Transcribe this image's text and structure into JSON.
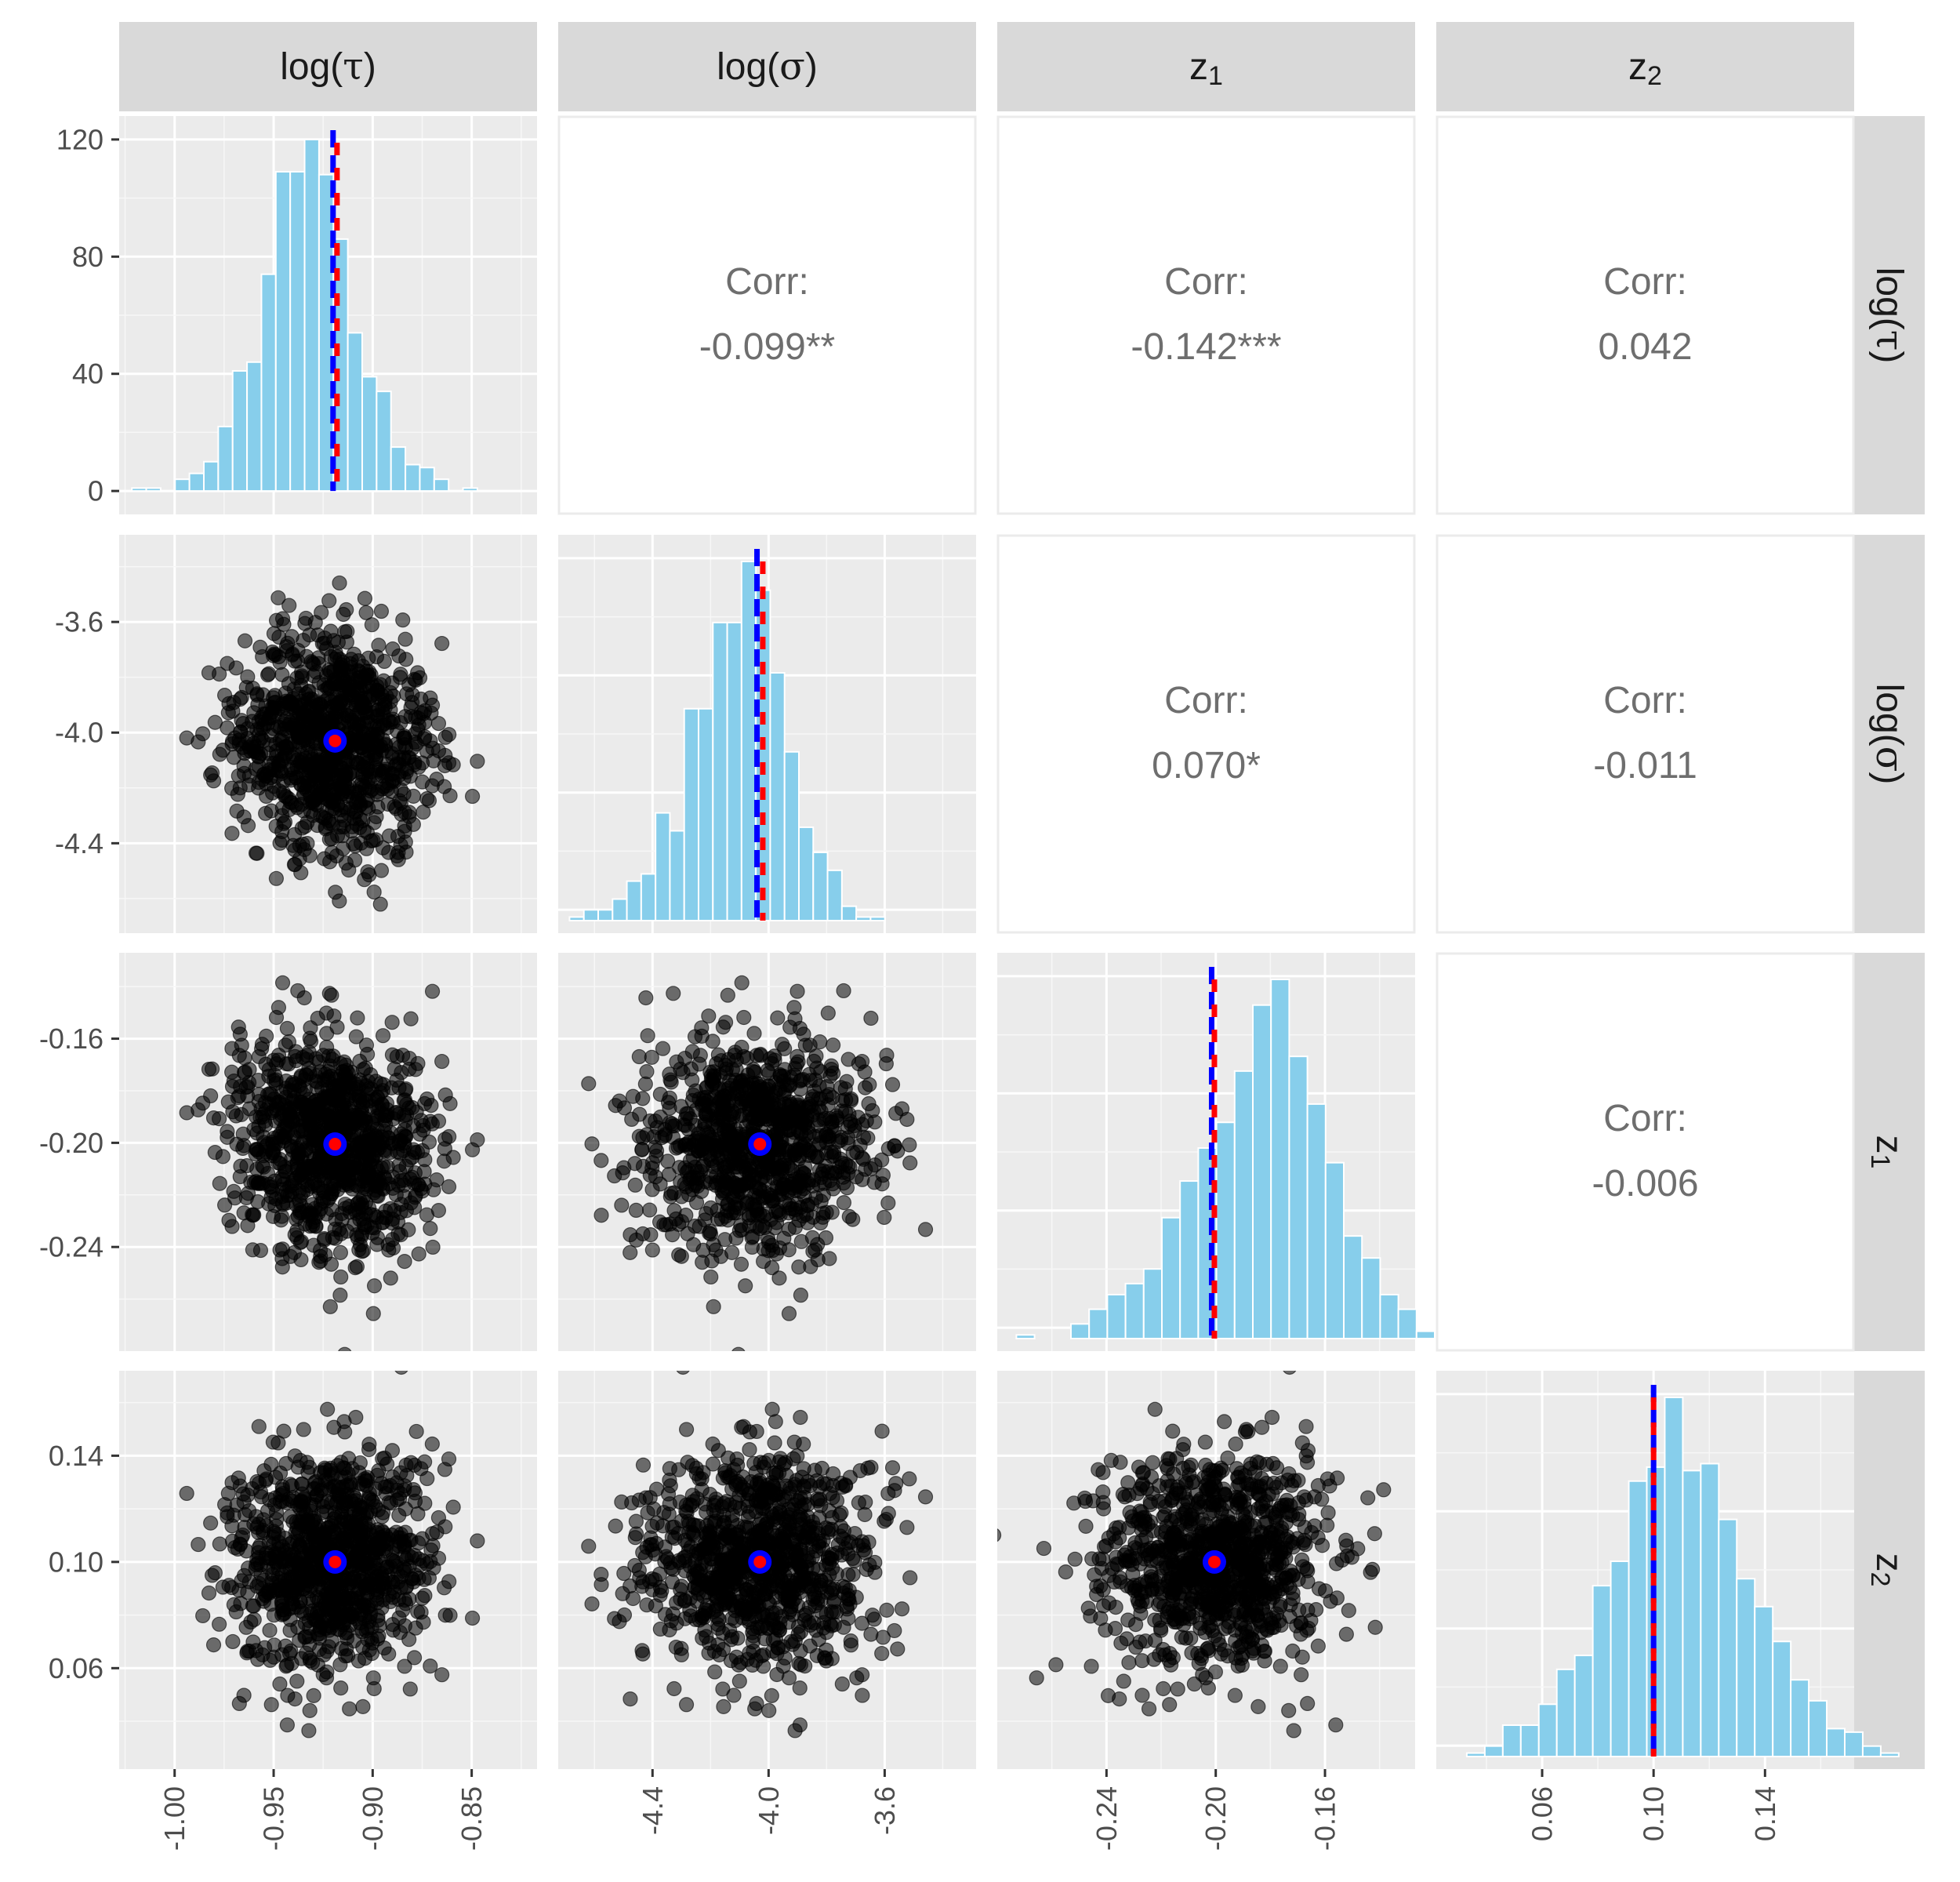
{
  "variables": [
    {
      "key": "logtau",
      "label_main": "log(",
      "label_sym": "τ",
      "label_end": ")",
      "label_sub": ""
    },
    {
      "key": "logsigma",
      "label_main": "log(",
      "label_sym": "σ",
      "label_end": ")",
      "label_sub": ""
    },
    {
      "key": "z1",
      "label_main": "z",
      "label_sym": "",
      "label_end": "",
      "label_sub": "1"
    },
    {
      "key": "z2",
      "label_main": "z",
      "label_sym": "",
      "label_end": "",
      "label_sub": "2"
    }
  ],
  "colors": {
    "panel_bg": "#ebebeb",
    "strip_bg": "#d9d9d9",
    "hist_fill": "#87ceeb",
    "point": "#000000",
    "mean_line": "#ff0000",
    "true_line": "#0000ff"
  },
  "chart_data": {
    "type": "pairs",
    "corr_label": "Corr:",
    "correlations": [
      {
        "row": 0,
        "col": 1,
        "value": "-0.099**"
      },
      {
        "row": 0,
        "col": 2,
        "value": "-0.142***"
      },
      {
        "row": 0,
        "col": 3,
        "value": "0.042"
      },
      {
        "row": 1,
        "col": 2,
        "value": "0.070*"
      },
      {
        "row": 1,
        "col": 3,
        "value": "-0.011"
      },
      {
        "row": 2,
        "col": 3,
        "value": "-0.006"
      }
    ],
    "axes": {
      "logtau": {
        "range": [
          -1.028,
          -0.817
        ],
        "ticks": [
          -1.0,
          -0.95,
          -0.9,
          -0.85
        ],
        "tick_labels": [
          "-1.00",
          "-0.95",
          "-0.90",
          "-0.85"
        ]
      },
      "logsigma": {
        "range": [
          -4.725,
          -3.285
        ],
        "ticks": [
          -4.4,
          -4.0,
          -3.6
        ],
        "tick_labels": [
          "-4.4",
          "-4.0",
          "-3.6"
        ]
      },
      "z1": {
        "range": [
          -0.28,
          -0.127
        ],
        "ticks": [
          -0.24,
          -0.2,
          -0.16
        ],
        "tick_labels": [
          "-0.24",
          "-0.20",
          "-0.16"
        ]
      },
      "z2": {
        "range": [
          0.022,
          0.172
        ],
        "ticks": [
          0.06,
          0.1,
          0.14
        ],
        "tick_labels": [
          "0.06",
          "0.10",
          "0.14"
        ]
      }
    },
    "y_axis_hist_top_left": {
      "range": [
        -8,
        128
      ],
      "ticks": [
        0,
        40,
        80,
        120
      ],
      "tick_labels": [
        "0",
        "40",
        "80",
        "120"
      ]
    },
    "histograms": {
      "logtau": {
        "start": -1.0216,
        "binwidth": 0.00727,
        "counts": [
          1,
          1,
          0,
          4,
          6,
          10,
          22,
          41,
          44,
          74,
          109,
          109,
          120,
          108,
          86,
          54,
          39,
          34,
          15,
          9,
          8,
          4,
          0,
          1
        ],
        "mean": -0.918,
        "true": -0.92
      },
      "logsigma": {
        "start": -4.686,
        "binwidth": 0.0494,
        "counts": [
          1,
          3,
          3,
          6,
          11,
          13,
          30,
          25,
          59,
          59,
          83,
          83,
          100,
          92,
          69,
          47,
          26,
          19,
          14,
          4,
          1,
          1
        ],
        "mean": -4.02,
        "true": -4.04
      },
      "z1": {
        "start": -0.273,
        "binwidth": 0.00666,
        "counts": [
          1,
          0,
          0,
          4,
          8,
          12,
          15,
          19,
          33,
          43,
          52,
          59,
          73,
          91,
          98,
          77,
          64,
          48,
          28,
          22,
          12,
          8,
          2,
          0,
          0,
          1
        ],
        "mean": -0.2005,
        "true": -0.2015
      },
      "z2": {
        "start": 0.0265,
        "binwidth": 0.00646,
        "counts": [
          0,
          1,
          3,
          9,
          9,
          15,
          25,
          29,
          49,
          56,
          79,
          83,
          103,
          82,
          84,
          68,
          51,
          43,
          33,
          22,
          16,
          8,
          7,
          3,
          1
        ],
        "mean": 0.1,
        "true": 0.1
      }
    },
    "scatter": {
      "n_points": 1000,
      "means": {
        "logtau": -0.919,
        "logsigma": -4.03,
        "z1": -0.2005,
        "z2": 0.1
      },
      "sds": {
        "logtau": 0.025,
        "logsigma": 0.2,
        "z1": 0.02,
        "z2": 0.021
      },
      "pairwise_corr": {
        "0-1": -0.099,
        "0-2": -0.142,
        "0-3": 0.042,
        "1-2": 0.07,
        "1-3": -0.011,
        "2-3": -0.006
      }
    }
  }
}
